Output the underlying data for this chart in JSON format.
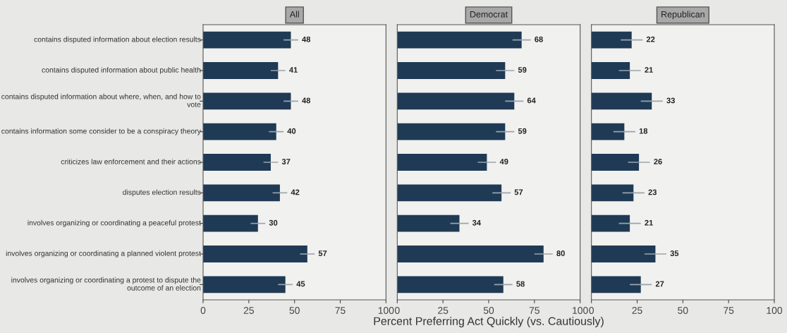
{
  "chart_data": [
    {
      "type": "bar",
      "orientation": "horizontal",
      "title": "All",
      "categories": [
        "contains disputed information about election results",
        "contains disputed information about public health",
        "contains disputed information about where, when, and how to vote",
        "contains information some consider to be a conspiracy theory",
        "criticizes law enforcement and their actions",
        "disputes election results",
        "involves organizing or coordinating a peaceful protest",
        "involves organizing or coordinating a planned violent protest",
        "involves organizing or coordinating a protest to dispute the outcome of an election"
      ],
      "series": [
        {
          "color": "#1f3a55",
          "values": [
            48,
            41,
            48,
            40,
            37,
            42,
            30,
            57,
            45
          ],
          "errors": [
            4,
            4,
            4,
            4,
            4,
            4,
            4,
            4,
            4
          ]
        }
      ],
      "data_labels": true,
      "xlim": [
        0,
        100
      ],
      "xticks": [
        0,
        25,
        50,
        75,
        100
      ],
      "grid": false
    },
    {
      "type": "bar",
      "orientation": "horizontal",
      "title": "Democrat",
      "xlabel": "Percent Preferring Act Quickly (vs. Cautiously)",
      "categories": [
        null,
        null,
        null,
        null,
        null,
        null,
        null,
        null,
        null
      ],
      "series": [
        {
          "color": "#1f3a55",
          "values": [
            68,
            59,
            64,
            59,
            49,
            57,
            34,
            80,
            58
          ],
          "errors": [
            5,
            5,
            5,
            5,
            5,
            5,
            5,
            5,
            5
          ]
        }
      ],
      "data_labels": true,
      "xlim": [
        0,
        100
      ],
      "xticks": [
        0,
        25,
        50,
        75,
        100
      ],
      "tick_labels": "x",
      "grid": false
    },
    {
      "type": "bar",
      "orientation": "horizontal",
      "title": "Republican",
      "categories": [
        null,
        null,
        null,
        null,
        null,
        null,
        null,
        null,
        null
      ],
      "series": [
        {
          "color": "#1f3a55",
          "values": [
            22,
            21,
            33,
            18,
            26,
            23,
            21,
            35,
            27
          ],
          "errors": [
            6,
            6,
            6,
            6,
            6,
            6,
            6,
            6,
            6
          ]
        }
      ],
      "data_labels": true,
      "xlim": [
        0,
        100
      ],
      "xticks": [
        0,
        25,
        50,
        75,
        100
      ],
      "tick_labels": "x",
      "grid": false
    }
  ]
}
